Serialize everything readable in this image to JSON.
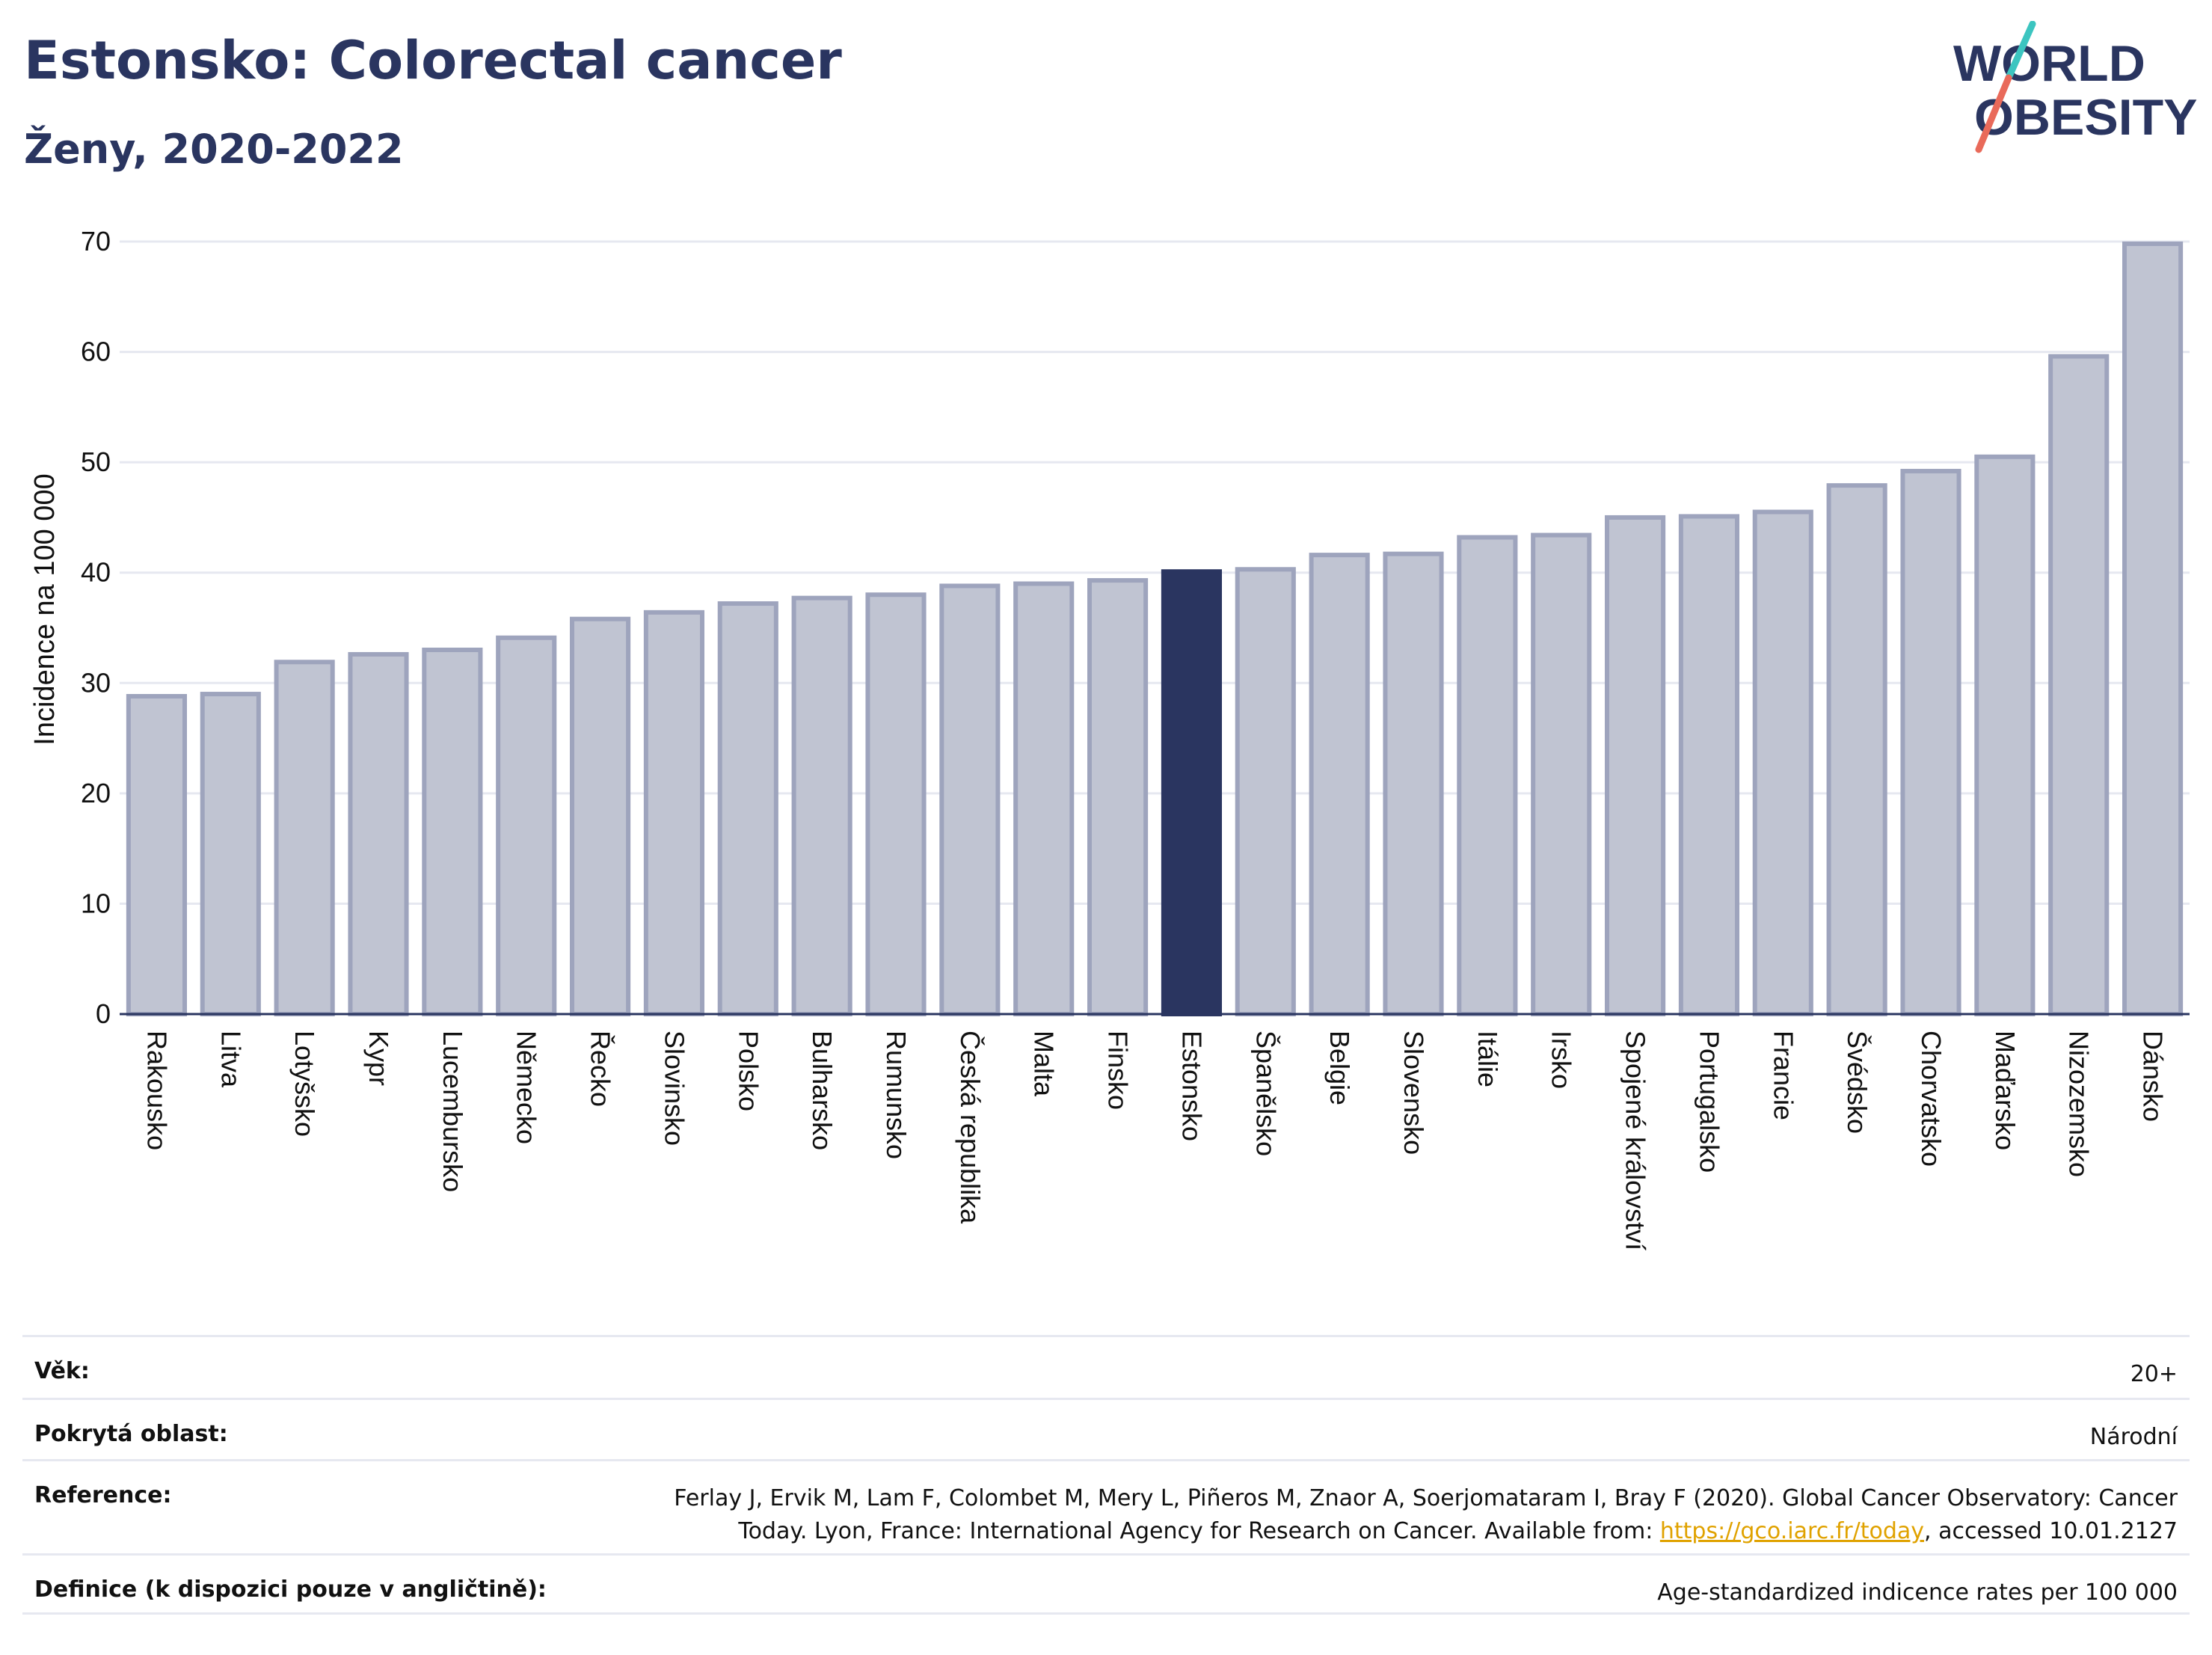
{
  "title": "Estonsko: Colorectal cancer",
  "subtitle": "Ženy, 2020-2022",
  "logo": {
    "line1": "WORLD",
    "line2": "OBESITY",
    "slash_colors": [
      "#3cc5c0",
      "#e96a5a"
    ]
  },
  "colors": {
    "highlight": "#2a3560",
    "bar": "#c0c4d2",
    "bar_border": "#9ea4bd",
    "grid": "#e6e8f0",
    "axis": "#2a3560"
  },
  "chart_data": {
    "type": "bar",
    "ylabel": "Incidence na 100 000",
    "ylim": [
      0,
      70
    ],
    "yticks": [
      0,
      10,
      20,
      30,
      40,
      50,
      60,
      70
    ],
    "highlight": "Estonsko",
    "categories": [
      "Rakousko",
      "Litva",
      "Lotyšsko",
      "Kypr",
      "Lucembursko",
      "Německo",
      "Řecko",
      "Slovinsko",
      "Polsko",
      "Bulharsko",
      "Rumunsko",
      "Česká republika",
      "Malta",
      "Finsko",
      "Estonsko",
      "Španělsko",
      "Belgie",
      "Slovensko",
      "Itálie",
      "Irsko",
      "Spojené království",
      "Portugalsko",
      "Francie",
      "Švédsko",
      "Chorvatsko",
      "Maďarsko",
      "Nizozemsko",
      "Dánsko"
    ],
    "values": [
      28.8,
      29.0,
      31.9,
      32.6,
      33.0,
      34.1,
      35.8,
      36.4,
      37.2,
      37.7,
      38.0,
      38.8,
      39.0,
      39.3,
      40.1,
      40.3,
      41.6,
      41.7,
      43.2,
      43.4,
      45.0,
      45.1,
      45.5,
      47.9,
      49.2,
      50.5,
      59.6,
      69.8
    ],
    "grid": true,
    "legend": "none"
  },
  "meta": [
    {
      "label": "Věk:",
      "value": "20+"
    },
    {
      "label": "Pokrytá oblast:",
      "value": "Národní"
    },
    {
      "label": "Reference:",
      "value_line1": "Ferlay J, Ervik M, Lam F, Colombet M, Mery L, Piñeros M, Znaor A, Soerjomataram I, Bray F (2020). Global Cancer Observatory: Cancer",
      "value_pre": "Today. Lyon, France: International Agency for Research on Cancer. Available from: ",
      "link": "https://gco.iarc.fr/today",
      "value_post": ", accessed 10.01.2127"
    },
    {
      "label": "Definice (k dispozici pouze v angličtině):",
      "value": "Age-standardized indicence rates per 100 000"
    }
  ]
}
